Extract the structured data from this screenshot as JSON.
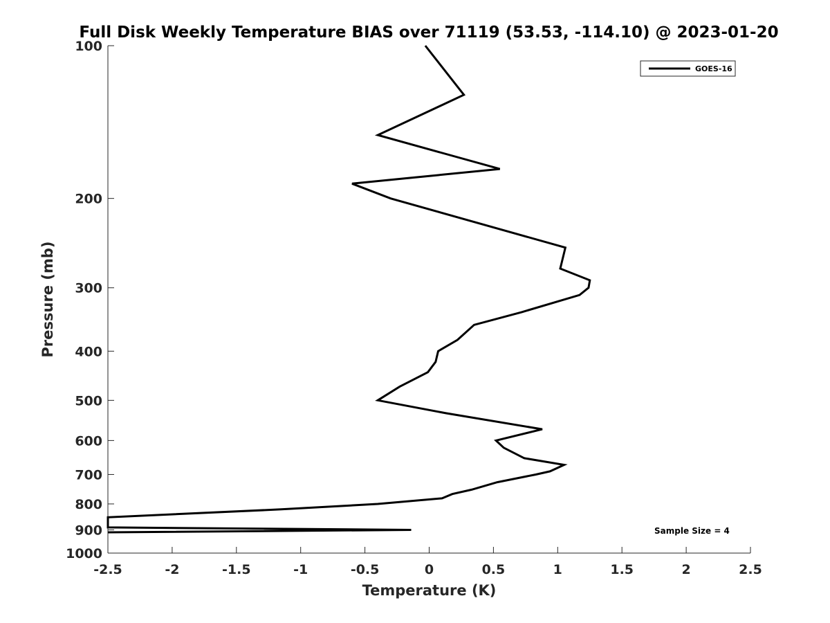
{
  "chart_data": {
    "type": "line",
    "title": "Full Disk Weekly Temperature BIAS over 71119 (53.53, -114.10) @ 2023-01-20",
    "xlabel": "Temperature (K)",
    "ylabel": "Pressure (mb)",
    "xlim": [
      -2.5,
      2.5
    ],
    "ylim": [
      100,
      1000
    ],
    "y_scale": "log",
    "y_reversed": true,
    "grid": false,
    "x_ticks": [
      "-2.5",
      "-2",
      "-1.5",
      "-1",
      "-0.5",
      "0",
      "0.5",
      "1",
      "1.5",
      "2",
      "2.5"
    ],
    "y_ticks": [
      "100",
      "200",
      "300",
      "400",
      "500",
      "600",
      "700",
      "800",
      "900",
      "1000"
    ],
    "legend": {
      "position": "top-right",
      "entries": [
        "GOES-16"
      ]
    },
    "annotations": [
      "Sample Size = 4"
    ],
    "series": [
      {
        "name": "GOES-16",
        "color": "#000000",
        "points": [
          {
            "x": -0.03,
            "pressure": 100
          },
          {
            "x": 0.27,
            "pressure": 125
          },
          {
            "x": -0.4,
            "pressure": 150
          },
          {
            "x": 0.55,
            "pressure": 175
          },
          {
            "x": -0.6,
            "pressure": 187
          },
          {
            "x": -0.3,
            "pressure": 200
          },
          {
            "x": 1.06,
            "pressure": 250
          },
          {
            "x": 1.02,
            "pressure": 275
          },
          {
            "x": 1.25,
            "pressure": 290
          },
          {
            "x": 1.24,
            "pressure": 300
          },
          {
            "x": 1.17,
            "pressure": 310
          },
          {
            "x": 0.72,
            "pressure": 335
          },
          {
            "x": 0.35,
            "pressure": 355
          },
          {
            "x": 0.22,
            "pressure": 380
          },
          {
            "x": 0.07,
            "pressure": 400
          },
          {
            "x": 0.05,
            "pressure": 420
          },
          {
            "x": -0.01,
            "pressure": 440
          },
          {
            "x": -0.23,
            "pressure": 470
          },
          {
            "x": -0.4,
            "pressure": 500
          },
          {
            "x": 0.13,
            "pressure": 530
          },
          {
            "x": 0.88,
            "pressure": 570
          },
          {
            "x": 0.52,
            "pressure": 600
          },
          {
            "x": 0.58,
            "pressure": 620
          },
          {
            "x": 0.74,
            "pressure": 650
          },
          {
            "x": 1.05,
            "pressure": 670
          },
          {
            "x": 0.94,
            "pressure": 690
          },
          {
            "x": 0.83,
            "pressure": 700
          },
          {
            "x": 0.53,
            "pressure": 725
          },
          {
            "x": 0.33,
            "pressure": 750
          },
          {
            "x": 0.18,
            "pressure": 765
          },
          {
            "x": 0.1,
            "pressure": 780
          },
          {
            "x": -0.4,
            "pressure": 800
          },
          {
            "x": -1.15,
            "pressure": 820
          },
          {
            "x": -2.5,
            "pressure": 850
          },
          {
            "x": -2.5,
            "pressure": 890
          },
          {
            "x": -0.14,
            "pressure": 900
          },
          {
            "x": -2.5,
            "pressure": 910
          }
        ]
      }
    ]
  }
}
